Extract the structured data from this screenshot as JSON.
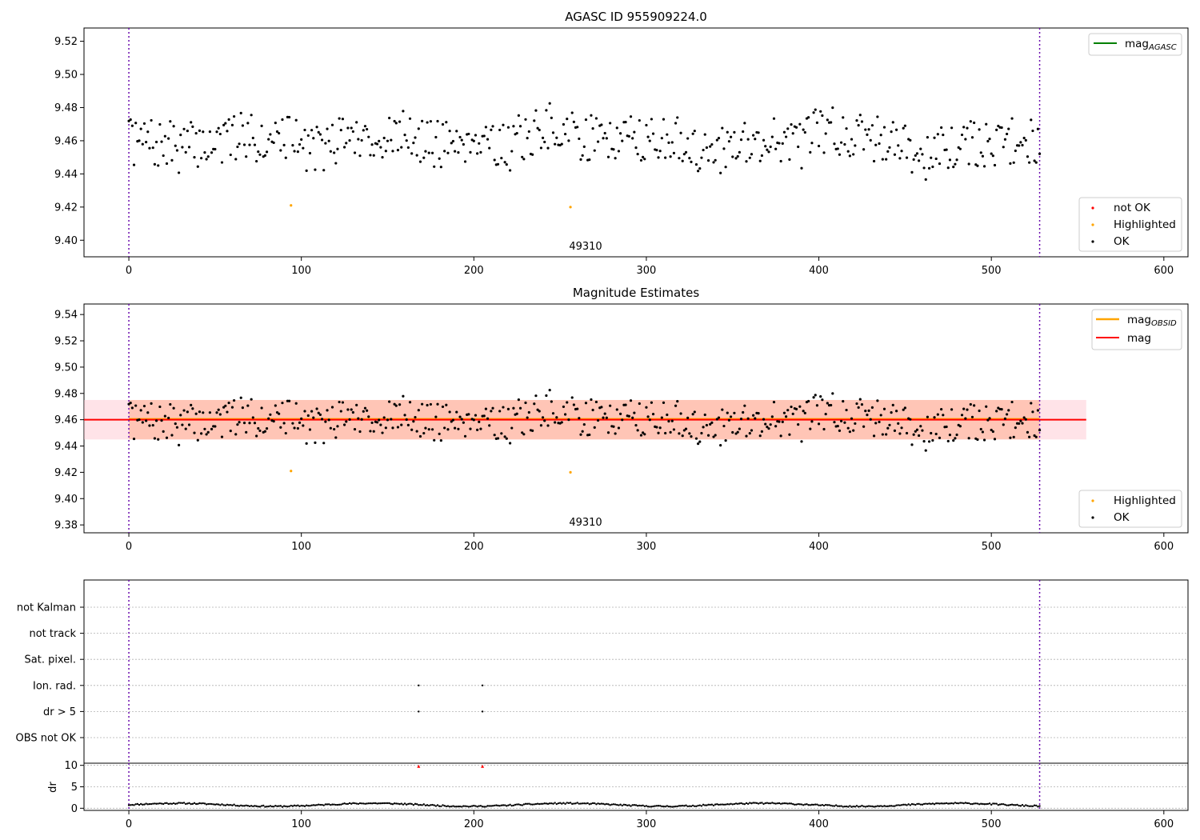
{
  "chart_data": [
    {
      "type": "scatter",
      "title": "AGASC ID 955909224.0",
      "xlim": [
        -26,
        614
      ],
      "ylim": [
        9.39,
        9.528
      ],
      "xticks": [
        0,
        100,
        200,
        300,
        400,
        500,
        600
      ],
      "yticks": [
        9.4,
        9.42,
        9.44,
        9.46,
        9.48,
        9.5,
        9.52
      ],
      "vlines": [
        0,
        528
      ],
      "text_annotation": {
        "text": "49310",
        "x": 264,
        "y": 9.395
      },
      "series": [
        {
          "name": "not OK",
          "color": "#ff0000",
          "x": [],
          "y": []
        },
        {
          "name": "Highlighted",
          "color": "#ffa500",
          "x": [
            94,
            256
          ],
          "y": [
            9.421,
            9.42
          ]
        },
        {
          "name": "OK",
          "color": "#000000",
          "n": 529,
          "seed": 7,
          "base": 9.461,
          "jitter": 0.018
        }
      ],
      "lines_legend": [
        {
          "name": "magAGASC",
          "label_main": "mag",
          "label_sub": "AGASC",
          "color": "#008000"
        }
      ],
      "legend_points": [
        "not OK",
        "Highlighted",
        "OK"
      ]
    },
    {
      "type": "scatter",
      "title": "Magnitude Estimates",
      "xlim": [
        -26,
        614
      ],
      "ylim": [
        9.374,
        9.548
      ],
      "xticks": [
        0,
        100,
        200,
        300,
        400,
        500,
        600
      ],
      "yticks": [
        9.38,
        9.4,
        9.42,
        9.44,
        9.46,
        9.48,
        9.5,
        9.52,
        9.54
      ],
      "vlines": [
        0,
        528
      ],
      "text_annotation": {
        "text": "49310",
        "x": 264,
        "y": 9.378
      },
      "bands": [
        {
          "color": "#ffc0cb",
          "opacity": 0.45,
          "x": [
            -26,
            555
          ],
          "y": [
            9.445,
            9.475
          ]
        },
        {
          "color": "#ffa07a",
          "opacity": 0.45,
          "x": [
            0,
            528
          ],
          "y": [
            9.445,
            9.475
          ]
        }
      ],
      "hlines": [
        {
          "name": "magOBSID",
          "label_main": "mag",
          "label_sub": "OBSID",
          "color": "#ffa500",
          "x": [
            0,
            528
          ],
          "y": 9.4605
        },
        {
          "name": "mag",
          "label_main": "mag",
          "color": "#ff0000",
          "x": [
            -26,
            555
          ],
          "y": 9.46
        }
      ],
      "series": [
        {
          "name": "Highlighted",
          "color": "#ffa500",
          "x": [
            94,
            256
          ],
          "y": [
            9.421,
            9.42
          ]
        },
        {
          "name": "OK",
          "color": "#000000",
          "n": 529,
          "seed": 7,
          "base": 9.461,
          "jitter": 0.018
        }
      ],
      "legend_points": [
        "Highlighted",
        "OK"
      ]
    },
    {
      "type": "scatter",
      "title": "",
      "xlim": [
        -26,
        614
      ],
      "categories": [
        "OBS not OK",
        "dr > 5",
        "Ion. rad.",
        "Sat. pixel.",
        "not track",
        "not Kalman"
      ],
      "vlines": [
        0,
        528
      ],
      "flags": [
        {
          "category": "dr > 5",
          "x": [
            168,
            205
          ]
        },
        {
          "category": "Ion. rad.",
          "x": [
            168,
            205
          ]
        }
      ]
    },
    {
      "type": "scatter",
      "title": "",
      "ylabel": "dr",
      "xlim": [
        -26,
        614
      ],
      "ylim": [
        -0.5,
        10.5
      ],
      "xticks": [
        0,
        100,
        200,
        300,
        400,
        500,
        600
      ],
      "yticks": [
        0,
        5,
        10
      ],
      "vlines": [
        0,
        528
      ],
      "series": [
        {
          "name": "dr",
          "color": "#000000",
          "n": 529,
          "seed": 11,
          "base": 0.8,
          "jitter": 0.3
        },
        {
          "name": "dr > 5",
          "color": "#ff0000",
          "x": [
            168,
            205
          ],
          "y": [
            9.8,
            9.8
          ]
        }
      ]
    }
  ]
}
